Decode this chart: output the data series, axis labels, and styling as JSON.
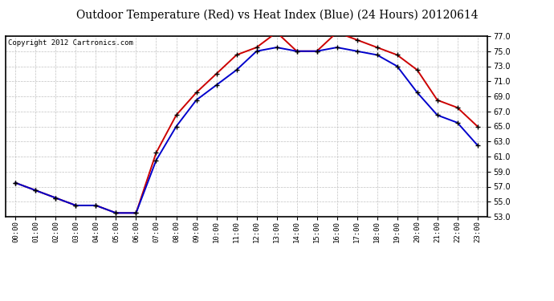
{
  "title": "Outdoor Temperature (Red) vs Heat Index (Blue) (24 Hours) 20120614",
  "copyright": "Copyright 2012 Cartronics.com",
  "hours": [
    "00:00",
    "01:00",
    "02:00",
    "03:00",
    "04:00",
    "05:00",
    "06:00",
    "07:00",
    "08:00",
    "09:00",
    "10:00",
    "11:00",
    "12:00",
    "13:00",
    "14:00",
    "15:00",
    "16:00",
    "17:00",
    "18:00",
    "19:00",
    "20:00",
    "21:00",
    "22:00",
    "23:00"
  ],
  "temp_red": [
    57.5,
    56.5,
    55.5,
    54.5,
    54.5,
    53.5,
    53.5,
    61.5,
    66.5,
    69.5,
    72.0,
    74.5,
    75.5,
    77.5,
    75.0,
    75.0,
    77.5,
    76.5,
    75.5,
    74.5,
    72.5,
    68.5,
    67.5,
    65.0
  ],
  "heat_blue": [
    57.5,
    56.5,
    55.5,
    54.5,
    54.5,
    53.5,
    53.5,
    60.5,
    65.0,
    68.5,
    70.5,
    72.5,
    75.0,
    75.5,
    75.0,
    75.0,
    75.5,
    75.0,
    74.5,
    73.0,
    69.5,
    66.5,
    65.5,
    62.5
  ],
  "ylim": [
    53.0,
    77.0
  ],
  "yticks": [
    53.0,
    55.0,
    57.0,
    59.0,
    61.0,
    63.0,
    65.0,
    67.0,
    69.0,
    71.0,
    73.0,
    75.0,
    77.0
  ],
  "red_color": "#cc0000",
  "blue_color": "#0000cc",
  "bg_color": "#ffffff",
  "grid_color": "#bbbbbb",
  "title_fontsize": 10,
  "copyright_fontsize": 6.5,
  "marker_color": "black",
  "marker_size": 4,
  "linewidth": 1.4
}
